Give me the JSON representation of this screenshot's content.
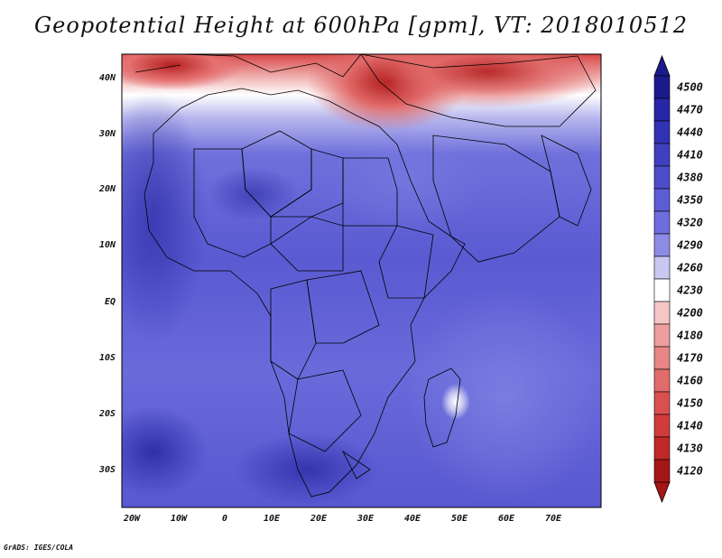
{
  "title": "Geopotential Height at 600hPa [gpm], VT: 2018010512",
  "lon_ticks": [
    "20W",
    "10W",
    "0",
    "10E",
    "20E",
    "30E",
    "40E",
    "50E",
    "60E",
    "70E"
  ],
  "lat_ticks": [
    "40N",
    "30N",
    "20N",
    "10N",
    "EQ",
    "10S",
    "20S",
    "30S"
  ],
  "colorbar": {
    "levels": [
      "4500",
      "4470",
      "4440",
      "4410",
      "4380",
      "4350",
      "4320",
      "4290",
      "4260",
      "4230",
      "4200",
      "4180",
      "4170",
      "4160",
      "4150",
      "4140",
      "4130",
      "4120"
    ],
    "colors": [
      "#1a1a8c",
      "#2626a6",
      "#3232b4",
      "#3f3fc0",
      "#4d4dcb",
      "#5c5cd5",
      "#6d6ddd",
      "#8c8ce6",
      "#c8c8f2",
      "#ffffff",
      "#f4c6c6",
      "#ee9e9e",
      "#e88585",
      "#e26b6b",
      "#da5050",
      "#d03b3b",
      "#c02828",
      "#a51616"
    ]
  },
  "footer": "GrADS: IGES/COLA"
}
